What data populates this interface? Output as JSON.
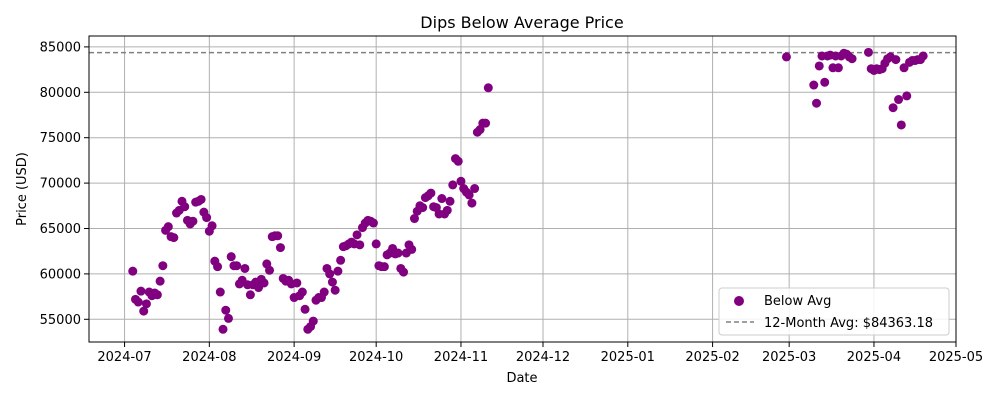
{
  "chart_data": {
    "type": "scatter",
    "title": "Dips Below Average Price",
    "xlabel": "Date",
    "ylabel": "Price (USD)",
    "xlim": [
      "2024-06-18",
      "2025-05-01"
    ],
    "ylim": [
      52500,
      86200
    ],
    "x_ticks": [
      "2024-07",
      "2024-08",
      "2024-09",
      "2024-10",
      "2024-11",
      "2024-12",
      "2025-01",
      "2025-02",
      "2025-03",
      "2025-04",
      "2025-05"
    ],
    "y_ticks": [
      55000,
      60000,
      65000,
      70000,
      75000,
      80000,
      85000
    ],
    "grid": true,
    "legend_position": "bottom-right",
    "colors": {
      "points": "#800080",
      "average_line": "#808080",
      "grid": "#b0b0b0",
      "legend_border": "#cccccc"
    },
    "series": [
      {
        "name": "Below Avg",
        "points": [
          [
            "2024-07-04",
            60300
          ],
          [
            "2024-07-05",
            57200
          ],
          [
            "2024-07-06",
            56900
          ],
          [
            "2024-07-07",
            58100
          ],
          [
            "2024-07-08",
            55900
          ],
          [
            "2024-07-09",
            56700
          ],
          [
            "2024-07-10",
            58000
          ],
          [
            "2024-07-11",
            57600
          ],
          [
            "2024-07-12",
            57900
          ],
          [
            "2024-07-13",
            57700
          ],
          [
            "2024-07-14",
            59200
          ],
          [
            "2024-07-15",
            60900
          ],
          [
            "2024-07-16",
            64800
          ],
          [
            "2024-07-17",
            65200
          ],
          [
            "2024-07-18",
            64100
          ],
          [
            "2024-07-19",
            64000
          ],
          [
            "2024-07-20",
            66700
          ],
          [
            "2024-07-21",
            67000
          ],
          [
            "2024-07-22",
            68000
          ],
          [
            "2024-07-23",
            67400
          ],
          [
            "2024-07-24",
            65900
          ],
          [
            "2024-07-25",
            65500
          ],
          [
            "2024-07-26",
            65800
          ],
          [
            "2024-07-27",
            67900
          ],
          [
            "2024-07-28",
            68000
          ],
          [
            "2024-07-29",
            68200
          ],
          [
            "2024-07-30",
            66800
          ],
          [
            "2024-07-31",
            66200
          ],
          [
            "2024-08-01",
            64700
          ],
          [
            "2024-08-02",
            65300
          ],
          [
            "2024-08-03",
            61400
          ],
          [
            "2024-08-04",
            60800
          ],
          [
            "2024-08-05",
            58000
          ],
          [
            "2024-08-06",
            53900
          ],
          [
            "2024-08-07",
            56000
          ],
          [
            "2024-08-08",
            55100
          ],
          [
            "2024-08-09",
            61900
          ],
          [
            "2024-08-10",
            60900
          ],
          [
            "2024-08-11",
            60900
          ],
          [
            "2024-08-12",
            58900
          ],
          [
            "2024-08-13",
            59300
          ],
          [
            "2024-08-14",
            60600
          ],
          [
            "2024-08-15",
            58800
          ],
          [
            "2024-08-16",
            57700
          ],
          [
            "2024-08-17",
            58800
          ],
          [
            "2024-08-18",
            59100
          ],
          [
            "2024-08-19",
            58500
          ],
          [
            "2024-08-20",
            59400
          ],
          [
            "2024-08-21",
            59000
          ],
          [
            "2024-08-22",
            61100
          ],
          [
            "2024-08-23",
            60400
          ],
          [
            "2024-08-24",
            64100
          ],
          [
            "2024-08-25",
            64200
          ],
          [
            "2024-08-26",
            64200
          ],
          [
            "2024-08-27",
            62900
          ],
          [
            "2024-08-28",
            59500
          ],
          [
            "2024-08-29",
            59200
          ],
          [
            "2024-08-30",
            59300
          ],
          [
            "2024-08-31",
            58900
          ],
          [
            "2024-09-01",
            57400
          ],
          [
            "2024-09-02",
            59000
          ],
          [
            "2024-09-03",
            57600
          ],
          [
            "2024-09-04",
            58000
          ],
          [
            "2024-09-05",
            56100
          ],
          [
            "2024-09-06",
            53900
          ],
          [
            "2024-09-07",
            54200
          ],
          [
            "2024-09-08",
            54800
          ],
          [
            "2024-09-09",
            57100
          ],
          [
            "2024-09-10",
            57400
          ],
          [
            "2024-09-11",
            57400
          ],
          [
            "2024-09-12",
            58000
          ],
          [
            "2024-09-13",
            60600
          ],
          [
            "2024-09-14",
            60000
          ],
          [
            "2024-09-15",
            59100
          ],
          [
            "2024-09-16",
            58200
          ],
          [
            "2024-09-17",
            60300
          ],
          [
            "2024-09-18",
            61500
          ],
          [
            "2024-09-19",
            63000
          ],
          [
            "2024-09-20",
            63100
          ],
          [
            "2024-09-21",
            63300
          ],
          [
            "2024-09-22",
            63500
          ],
          [
            "2024-09-23",
            63300
          ],
          [
            "2024-09-24",
            64300
          ],
          [
            "2024-09-25",
            63200
          ],
          [
            "2024-09-26",
            65100
          ],
          [
            "2024-09-27",
            65600
          ],
          [
            "2024-09-28",
            65900
          ],
          [
            "2024-09-29",
            65800
          ],
          [
            "2024-09-30",
            65600
          ],
          [
            "2024-10-01",
            63300
          ],
          [
            "2024-10-02",
            60900
          ],
          [
            "2024-10-03",
            60800
          ],
          [
            "2024-10-04",
            60800
          ],
          [
            "2024-10-05",
            62100
          ],
          [
            "2024-10-06",
            62300
          ],
          [
            "2024-10-07",
            62800
          ],
          [
            "2024-10-08",
            62200
          ],
          [
            "2024-10-09",
            62300
          ],
          [
            "2024-10-10",
            60600
          ],
          [
            "2024-10-11",
            60200
          ],
          [
            "2024-10-12",
            62300
          ],
          [
            "2024-10-13",
            63200
          ],
          [
            "2024-10-14",
            62700
          ],
          [
            "2024-10-15",
            66100
          ],
          [
            "2024-10-16",
            66900
          ],
          [
            "2024-10-17",
            67500
          ],
          [
            "2024-10-18",
            67300
          ],
          [
            "2024-10-19",
            68400
          ],
          [
            "2024-10-20",
            68600
          ],
          [
            "2024-10-21",
            68900
          ],
          [
            "2024-10-22",
            67400
          ],
          [
            "2024-10-23",
            67300
          ],
          [
            "2024-10-24",
            66600
          ],
          [
            "2024-10-25",
            68300
          ],
          [
            "2024-10-26",
            66600
          ],
          [
            "2024-10-27",
            67000
          ],
          [
            "2024-10-28",
            68000
          ],
          [
            "2024-10-29",
            69800
          ],
          [
            "2024-10-30",
            72700
          ],
          [
            "2024-10-31",
            72400
          ],
          [
            "2024-11-01",
            70200
          ],
          [
            "2024-11-02",
            69400
          ],
          [
            "2024-11-03",
            69000
          ],
          [
            "2024-11-04",
            68700
          ],
          [
            "2024-11-05",
            67800
          ],
          [
            "2024-11-06",
            69400
          ],
          [
            "2024-11-07",
            75600
          ],
          [
            "2024-11-08",
            75900
          ],
          [
            "2024-11-09",
            76600
          ],
          [
            "2024-11-10",
            76600
          ],
          [
            "2024-11-11",
            80500
          ],
          [
            "2025-02-28",
            83900
          ],
          [
            "2025-03-10",
            80800
          ],
          [
            "2025-03-11",
            78800
          ],
          [
            "2025-03-12",
            82900
          ],
          [
            "2025-03-13",
            84000
          ],
          [
            "2025-03-14",
            81100
          ],
          [
            "2025-03-15",
            84000
          ],
          [
            "2025-03-16",
            84100
          ],
          [
            "2025-03-17",
            82700
          ],
          [
            "2025-03-18",
            84000
          ],
          [
            "2025-03-19",
            82700
          ],
          [
            "2025-03-20",
            84000
          ],
          [
            "2025-03-21",
            84300
          ],
          [
            "2025-03-22",
            84200
          ],
          [
            "2025-03-23",
            83900
          ],
          [
            "2025-03-24",
            83700
          ],
          [
            "2025-03-30",
            84400
          ],
          [
            "2025-03-31",
            82600
          ],
          [
            "2025-04-01",
            82400
          ],
          [
            "2025-04-02",
            82600
          ],
          [
            "2025-04-03",
            82500
          ],
          [
            "2025-04-04",
            82600
          ],
          [
            "2025-04-05",
            83200
          ],
          [
            "2025-04-06",
            83700
          ],
          [
            "2025-04-07",
            83900
          ],
          [
            "2025-04-08",
            78300
          ],
          [
            "2025-04-09",
            83600
          ],
          [
            "2025-04-10",
            79200
          ],
          [
            "2025-04-11",
            76400
          ],
          [
            "2025-04-12",
            82700
          ],
          [
            "2025-04-13",
            79600
          ],
          [
            "2025-04-14",
            83300
          ],
          [
            "2025-04-15",
            83500
          ],
          [
            "2025-04-16",
            83500
          ],
          [
            "2025-04-17",
            83600
          ],
          [
            "2025-04-18",
            83600
          ],
          [
            "2025-04-19",
            84000
          ]
        ]
      }
    ],
    "reference_line": {
      "name": "12-Month Avg: $84363.18",
      "value": 84363.18,
      "style": "dashed"
    }
  }
}
